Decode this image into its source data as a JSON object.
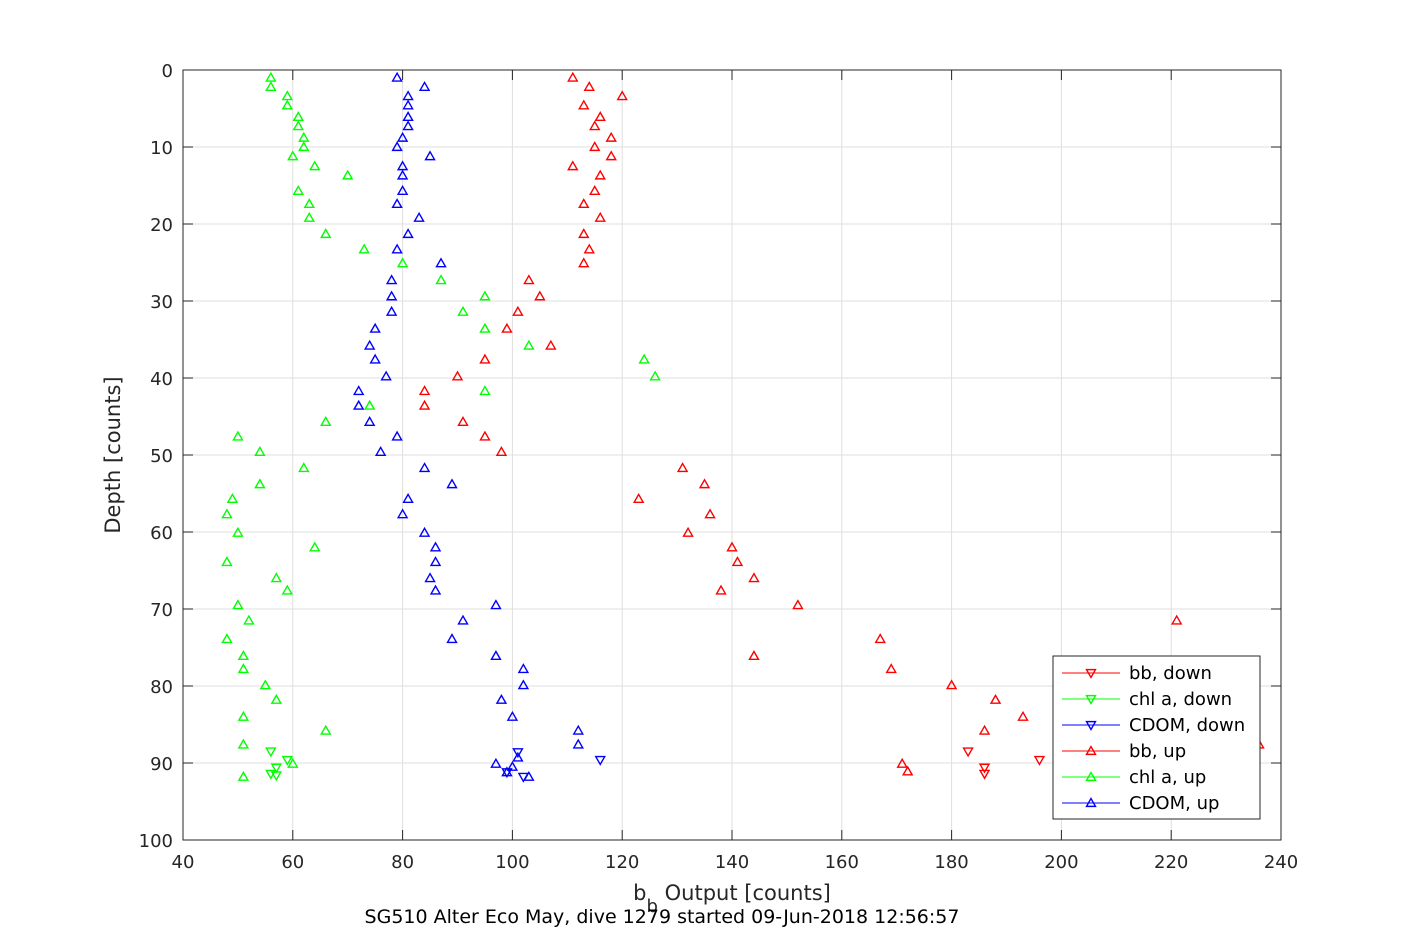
{
  "chart_data": {
    "type": "scatter",
    "xlabel": "b",
    "xlabel_sub": "b",
    "xlabel_rest": " Output [counts]",
    "ylabel": "Depth [counts]",
    "caption": "SG510 Alter Eco May, dive 1279 started 09-Jun-2018 12:56:57",
    "xlim": [
      40,
      240
    ],
    "ylim": [
      0,
      100
    ],
    "y_reversed": true,
    "grid": true,
    "legend_position": "bottom-right",
    "x_ticks": [
      "40",
      "60",
      "80",
      "100",
      "120",
      "140",
      "160",
      "180",
      "200",
      "220",
      "240"
    ],
    "y_ticks": [
      "0",
      "10",
      "20",
      "30",
      "40",
      "50",
      "60",
      "70",
      "80",
      "90",
      "100"
    ],
    "colors": {
      "bb": "#ff0000",
      "chl": "#00ff00",
      "cdom": "#0000ff"
    },
    "series": [
      {
        "name": "bb, down",
        "marker": "triangle-down",
        "color": "#ff0000",
        "points": [
          [
            183,
            88.5
          ],
          [
            186,
            90.6
          ],
          [
            186,
            91.4
          ],
          [
            196,
            89.6
          ]
        ]
      },
      {
        "name": "chl a, down",
        "marker": "triangle-down",
        "color": "#00ff00",
        "points": [
          [
            56,
            88.5
          ],
          [
            57,
            90.6
          ],
          [
            56,
            91.4
          ],
          [
            57,
            91.6
          ],
          [
            59,
            89.6
          ]
        ]
      },
      {
        "name": "CDOM, down",
        "marker": "triangle-down",
        "color": "#0000ff",
        "points": [
          [
            101,
            88.6
          ],
          [
            99,
            91.2
          ],
          [
            102,
            91.8
          ],
          [
            116,
            89.6
          ]
        ]
      },
      {
        "name": "bb, up",
        "marker": "triangle-up",
        "color": "#ff0000",
        "points": [
          [
            111,
            1
          ],
          [
            114,
            2.2
          ],
          [
            120,
            3.4
          ],
          [
            113,
            4.6
          ],
          [
            116,
            6.1
          ],
          [
            115,
            7.3
          ],
          [
            118,
            8.8
          ],
          [
            115,
            10
          ],
          [
            118,
            11.2
          ],
          [
            111,
            12.5
          ],
          [
            116,
            13.7
          ],
          [
            115,
            15.7
          ],
          [
            113,
            17.4
          ],
          [
            116,
            19.2
          ],
          [
            113,
            21.3
          ],
          [
            114,
            23.3
          ],
          [
            113,
            25.1
          ],
          [
            103,
            27.3
          ],
          [
            105,
            29.4
          ],
          [
            101,
            31.4
          ],
          [
            99,
            33.6
          ],
          [
            107,
            35.8
          ],
          [
            95,
            37.6
          ],
          [
            90,
            39.8
          ],
          [
            84,
            41.7
          ],
          [
            84,
            43.6
          ],
          [
            91,
            45.7
          ],
          [
            95,
            47.6
          ],
          [
            98,
            49.6
          ],
          [
            131,
            51.7
          ],
          [
            135,
            53.8
          ],
          [
            123,
            55.7
          ],
          [
            136,
            57.7
          ],
          [
            132,
            60.1
          ],
          [
            140,
            62
          ],
          [
            141,
            63.9
          ],
          [
            144,
            66
          ],
          [
            138,
            67.6
          ],
          [
            152,
            69.5
          ],
          [
            221,
            71.5
          ],
          [
            167,
            73.9
          ],
          [
            144,
            76.1
          ],
          [
            169,
            77.8
          ],
          [
            180,
            79.9
          ],
          [
            188,
            81.8
          ],
          [
            193,
            84
          ],
          [
            186,
            85.8
          ],
          [
            236,
            87.6
          ],
          [
            171,
            90.1
          ],
          [
            172,
            91.1
          ]
        ]
      },
      {
        "name": "chl a, up",
        "marker": "triangle-up",
        "color": "#00ff00",
        "points": [
          [
            56,
            1
          ],
          [
            56,
            2.2
          ],
          [
            59,
            3.4
          ],
          [
            59,
            4.6
          ],
          [
            61,
            6.1
          ],
          [
            61,
            7.3
          ],
          [
            62,
            8.8
          ],
          [
            62,
            10
          ],
          [
            60,
            11.2
          ],
          [
            64,
            12.5
          ],
          [
            70,
            13.7
          ],
          [
            61,
            15.7
          ],
          [
            63,
            17.4
          ],
          [
            63,
            19.2
          ],
          [
            66,
            21.3
          ],
          [
            73,
            23.3
          ],
          [
            80,
            25.1
          ],
          [
            87,
            27.3
          ],
          [
            95,
            29.4
          ],
          [
            91,
            31.4
          ],
          [
            95,
            33.6
          ],
          [
            103,
            35.8
          ],
          [
            124,
            37.6
          ],
          [
            126,
            39.8
          ],
          [
            95,
            41.7
          ],
          [
            74,
            43.6
          ],
          [
            66,
            45.7
          ],
          [
            50,
            47.6
          ],
          [
            54,
            49.6
          ],
          [
            62,
            51.7
          ],
          [
            54,
            53.8
          ],
          [
            49,
            55.7
          ],
          [
            48,
            57.7
          ],
          [
            50,
            60.1
          ],
          [
            64,
            62
          ],
          [
            48,
            63.9
          ],
          [
            57,
            66
          ],
          [
            59,
            67.6
          ],
          [
            50,
            69.5
          ],
          [
            52,
            71.5
          ],
          [
            48,
            73.9
          ],
          [
            51,
            76.1
          ],
          [
            51,
            77.8
          ],
          [
            55,
            79.9
          ],
          [
            57,
            81.8
          ],
          [
            51,
            84
          ],
          [
            66,
            85.8
          ],
          [
            51,
            87.6
          ],
          [
            60,
            90.1
          ],
          [
            51,
            91.8
          ]
        ]
      },
      {
        "name": "CDOM, up",
        "marker": "triangle-up",
        "color": "#0000ff",
        "points": [
          [
            79,
            1
          ],
          [
            84,
            2.2
          ],
          [
            81,
            3.4
          ],
          [
            81,
            4.6
          ],
          [
            81,
            6.1
          ],
          [
            81,
            7.3
          ],
          [
            80,
            8.8
          ],
          [
            79,
            10
          ],
          [
            85,
            11.2
          ],
          [
            80,
            12.5
          ],
          [
            80,
            13.7
          ],
          [
            80,
            15.7
          ],
          [
            79,
            17.4
          ],
          [
            83,
            19.2
          ],
          [
            81,
            21.3
          ],
          [
            79,
            23.3
          ],
          [
            87,
            25.1
          ],
          [
            78,
            27.3
          ],
          [
            78,
            29.4
          ],
          [
            78,
            31.4
          ],
          [
            75,
            33.6
          ],
          [
            74,
            35.8
          ],
          [
            75,
            37.6
          ],
          [
            77,
            39.8
          ],
          [
            72,
            41.7
          ],
          [
            72,
            43.6
          ],
          [
            74,
            45.7
          ],
          [
            79,
            47.6
          ],
          [
            76,
            49.6
          ],
          [
            84,
            51.7
          ],
          [
            89,
            53.8
          ],
          [
            81,
            55.7
          ],
          [
            80,
            57.7
          ],
          [
            84,
            60.1
          ],
          [
            86,
            62
          ],
          [
            86,
            63.9
          ],
          [
            85,
            66
          ],
          [
            86,
            67.6
          ],
          [
            97,
            69.5
          ],
          [
            91,
            71.5
          ],
          [
            89,
            73.9
          ],
          [
            97,
            76.1
          ],
          [
            102,
            77.8
          ],
          [
            102,
            79.9
          ],
          [
            98,
            81.8
          ],
          [
            100,
            84
          ],
          [
            112,
            85.8
          ],
          [
            112,
            87.6
          ],
          [
            101,
            89.3
          ],
          [
            97,
            90.1
          ],
          [
            100,
            90.5
          ],
          [
            99,
            91.2
          ],
          [
            103,
            91.8
          ]
        ]
      }
    ]
  }
}
